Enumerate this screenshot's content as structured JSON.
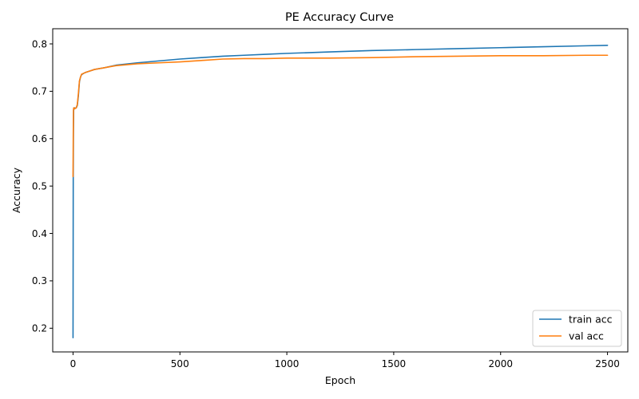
{
  "chart_data": {
    "type": "line",
    "title": "PE Accuracy Curve",
    "xlabel": "Epoch",
    "ylabel": "Accuracy",
    "xlim": [
      -95,
      2595
    ],
    "ylim": [
      0.15,
      0.832
    ],
    "xticks": [
      0,
      500,
      1000,
      1500,
      2000,
      2500
    ],
    "xtick_labels": [
      "0",
      "500",
      "1000",
      "1500",
      "2000",
      "2500"
    ],
    "yticks": [
      0.2,
      0.3,
      0.4,
      0.5,
      0.6,
      0.7,
      0.8
    ],
    "ytick_labels": [
      "0.2",
      "0.3",
      "0.4",
      "0.5",
      "0.6",
      "0.7",
      "0.8"
    ],
    "grid": false,
    "legend_position": "bottom-right",
    "series": [
      {
        "name": "train acc",
        "color": "#1f77b4",
        "x": [
          0,
          1,
          2,
          3,
          5,
          8,
          10,
          15,
          20,
          25,
          30,
          35,
          40,
          50,
          60,
          80,
          100,
          150,
          200,
          300,
          400,
          500,
          600,
          700,
          800,
          900,
          1000,
          1200,
          1400,
          1600,
          1800,
          2000,
          2200,
          2400,
          2500
        ],
        "y": [
          0.18,
          0.52,
          0.62,
          0.66,
          0.665,
          0.665,
          0.664,
          0.665,
          0.67,
          0.69,
          0.72,
          0.73,
          0.735,
          0.738,
          0.74,
          0.743,
          0.746,
          0.75,
          0.755,
          0.76,
          0.764,
          0.768,
          0.771,
          0.774,
          0.776,
          0.778,
          0.78,
          0.783,
          0.786,
          0.788,
          0.79,
          0.792,
          0.794,
          0.796,
          0.797
        ]
      },
      {
        "name": "val acc",
        "color": "#ff7f0e",
        "x": [
          0,
          1,
          2,
          3,
          5,
          8,
          10,
          15,
          20,
          25,
          30,
          35,
          40,
          50,
          60,
          80,
          100,
          150,
          200,
          300,
          400,
          500,
          600,
          700,
          800,
          900,
          1000,
          1200,
          1400,
          1600,
          1800,
          2000,
          2200,
          2400,
          2500
        ],
        "y": [
          0.52,
          0.6,
          0.66,
          0.665,
          0.665,
          0.663,
          0.664,
          0.665,
          0.672,
          0.695,
          0.722,
          0.73,
          0.736,
          0.738,
          0.74,
          0.743,
          0.746,
          0.75,
          0.754,
          0.758,
          0.76,
          0.762,
          0.765,
          0.768,
          0.769,
          0.769,
          0.77,
          0.77,
          0.771,
          0.773,
          0.774,
          0.775,
          0.775,
          0.776,
          0.776
        ]
      }
    ]
  }
}
